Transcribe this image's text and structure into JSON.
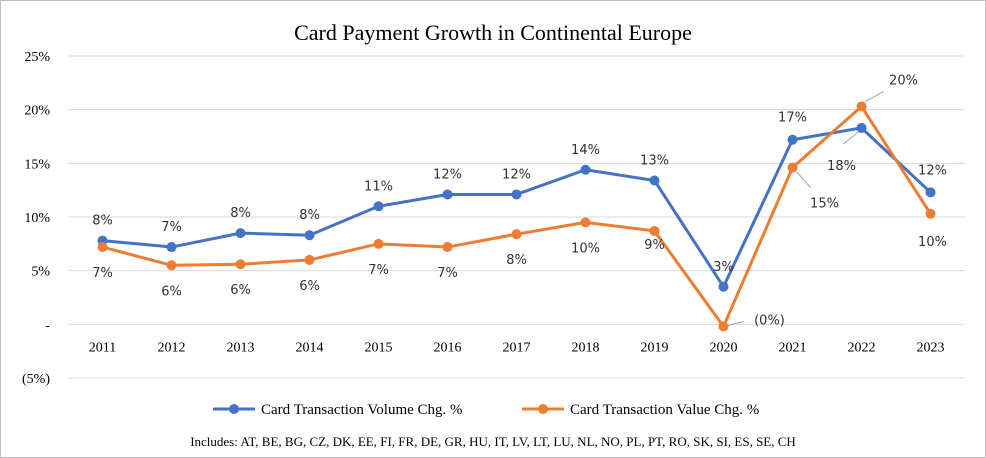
{
  "chart_data": {
    "type": "line",
    "title": "Card Payment Growth  in Continental  Europe",
    "categories": [
      "2011",
      "2012",
      "2013",
      "2014",
      "2015",
      "2016",
      "2017",
      "2018",
      "2019",
      "2020",
      "2021",
      "2022",
      "2023"
    ],
    "y_ticks": [
      {
        "value": 25,
        "label": "25%"
      },
      {
        "value": 20,
        "label": "20%"
      },
      {
        "value": 15,
        "label": "15%"
      },
      {
        "value": 10,
        "label": "10%"
      },
      {
        "value": 5,
        "label": "5%"
      },
      {
        "value": 0,
        "label": "-"
      },
      {
        "value": -5,
        "label": "(5%)"
      }
    ],
    "ylim": [
      -5,
      25
    ],
    "grid": true,
    "legend_position": "bottom",
    "series": [
      {
        "name": "Card Transaction Volume Chg. %",
        "color": "#4472c4",
        "values": [
          7.8,
          7.2,
          8.5,
          8.3,
          11.0,
          12.1,
          12.1,
          14.4,
          13.4,
          3.5,
          17.2,
          18.3,
          12.3
        ],
        "labels": [
          "8%",
          "7%",
          "8%",
          "8%",
          "11%",
          "12%",
          "12%",
          "14%",
          "13%",
          "3%",
          "17%",
          "18%",
          "12%"
        ]
      },
      {
        "name": "Card Transaction Value Chg. %",
        "color": "#ed7d31",
        "values": [
          7.2,
          5.5,
          5.6,
          6.0,
          7.5,
          7.2,
          8.4,
          9.5,
          8.7,
          -0.2,
          14.6,
          20.3,
          10.3
        ],
        "labels": [
          "7%",
          "6%",
          "6%",
          "6%",
          "7%",
          "7%",
          "8%",
          "10%",
          "9%",
          "(0%)",
          "15%",
          "20%",
          "10%"
        ]
      }
    ],
    "footnote": "Includes: AT, BE, BG, CZ, DK, EE, FI, FR, DE, GR, HU, IT, LV, LT, LU, NL, NO, PL, PT, RO, SK, SI, ES, SE, CH"
  }
}
